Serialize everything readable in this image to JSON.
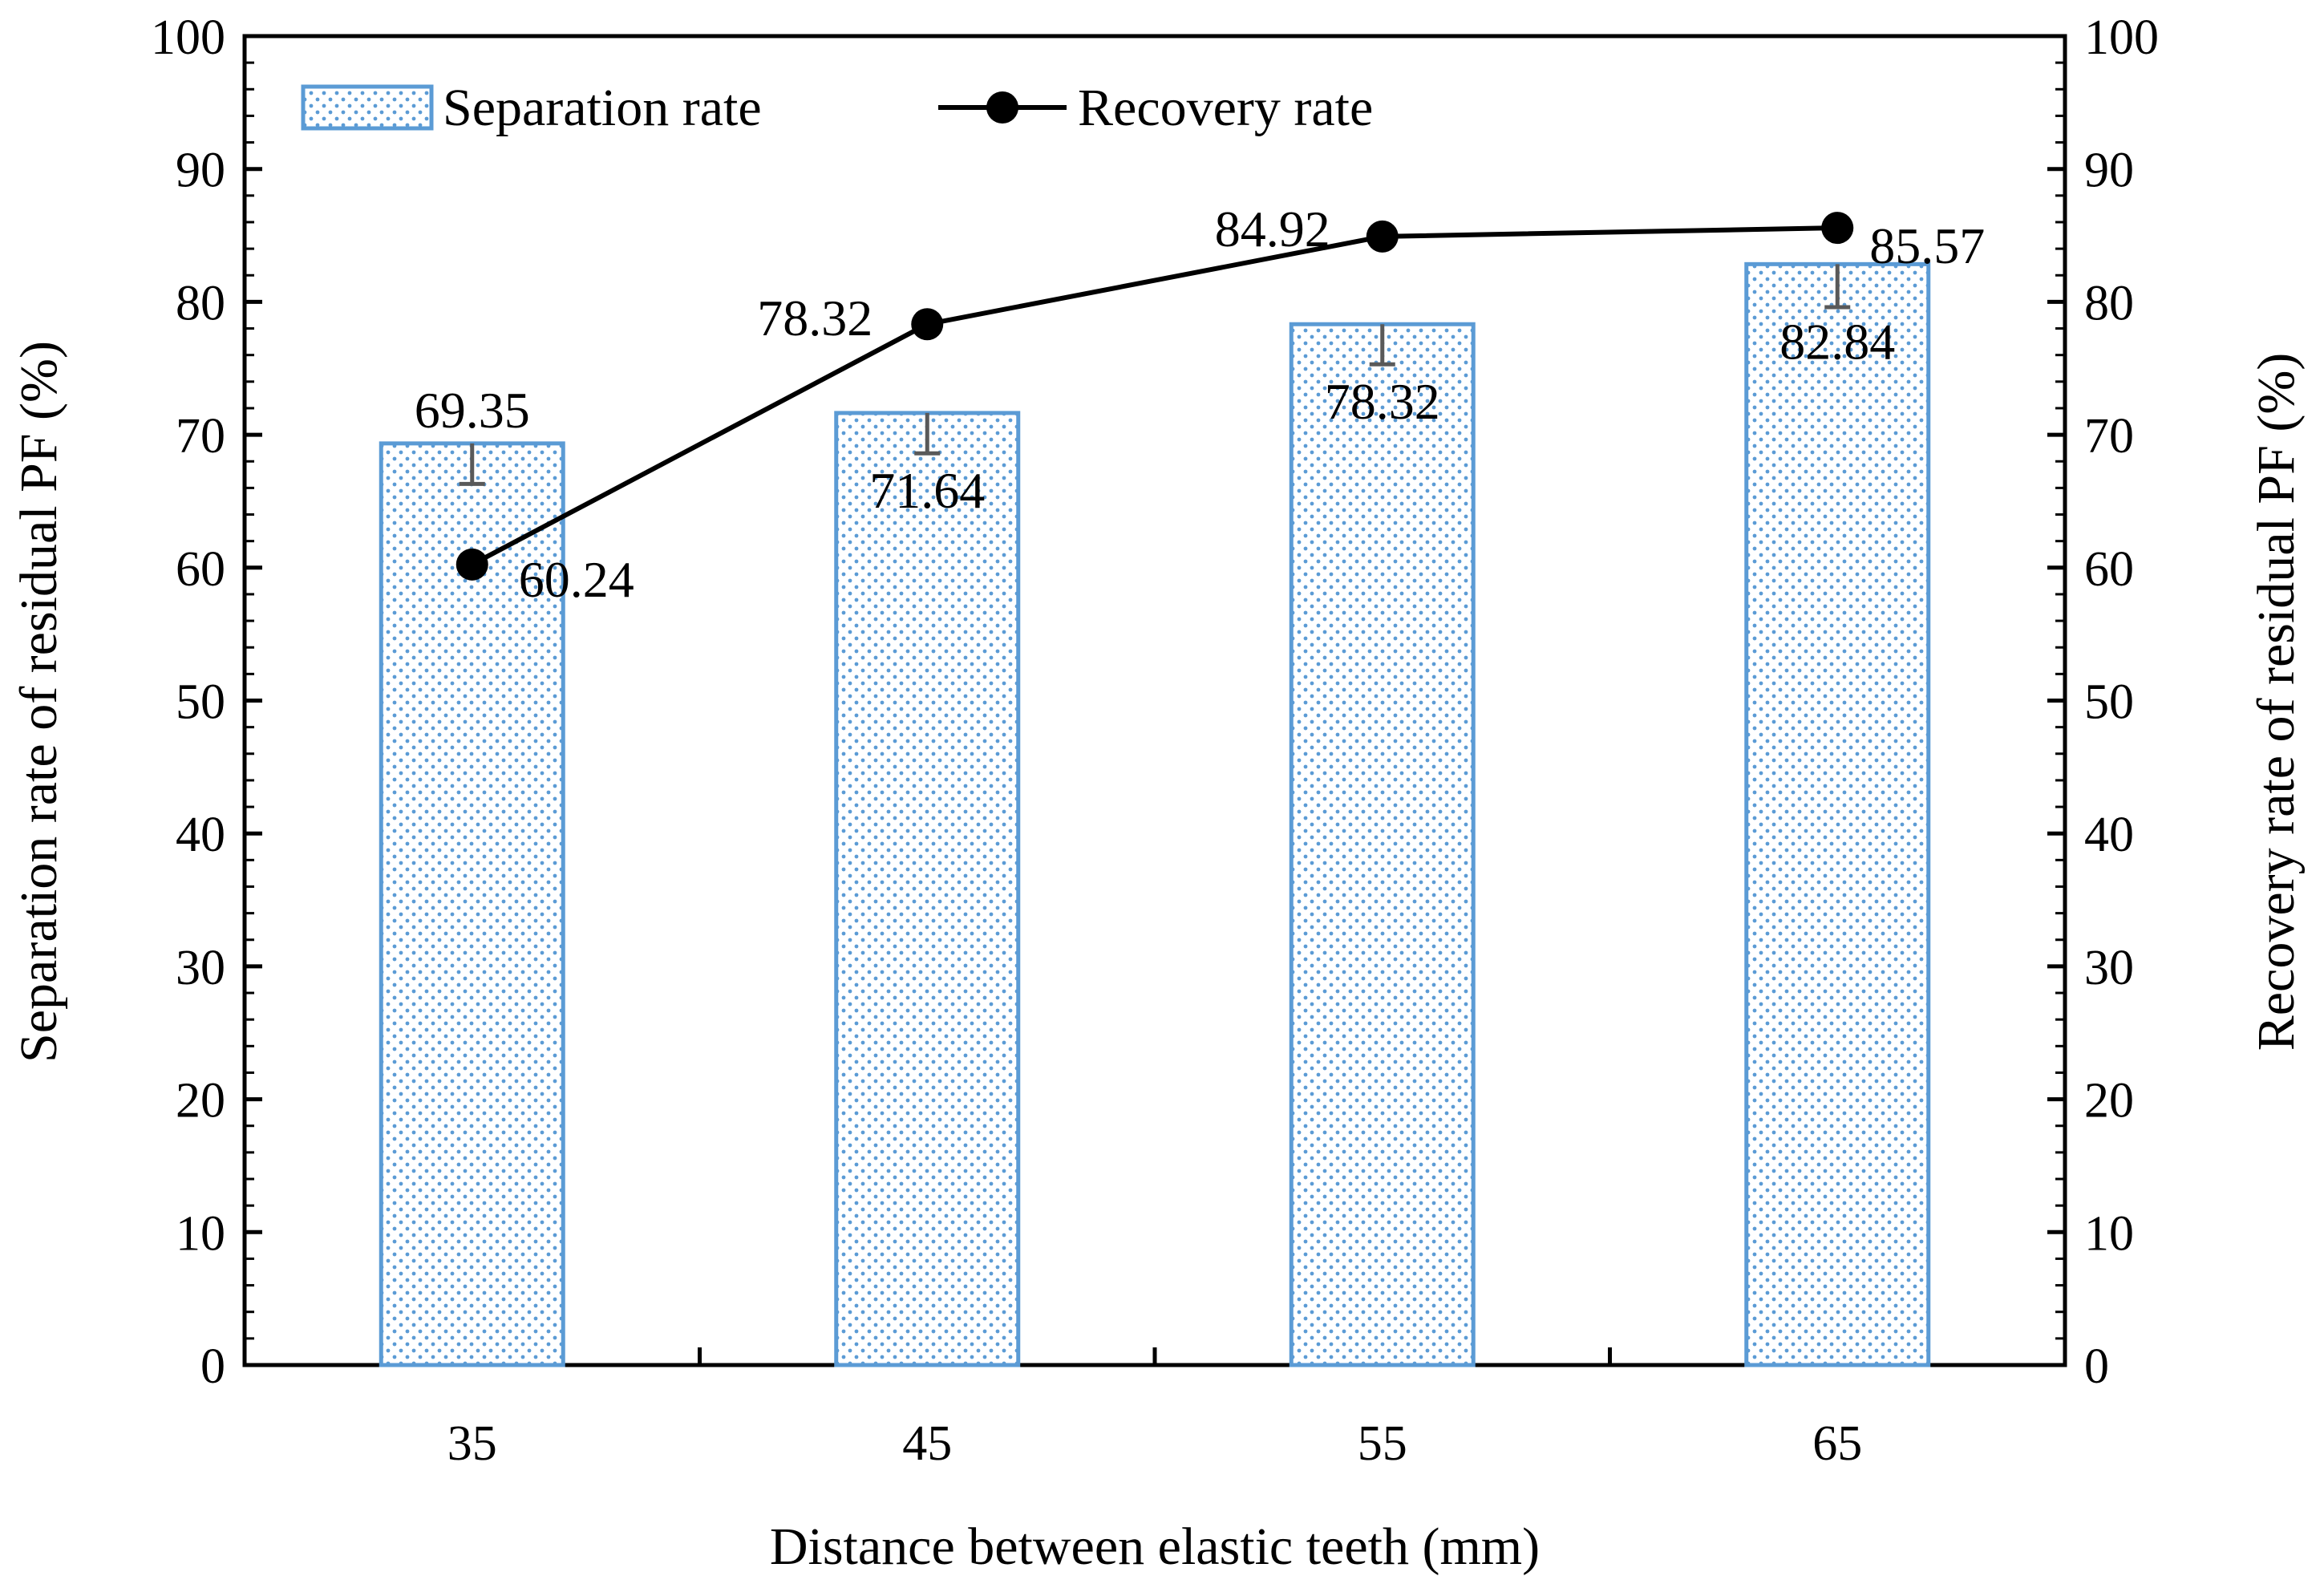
{
  "chart_data": {
    "type": "bar",
    "title": "",
    "categories": [
      "35",
      "45",
      "55",
      "65"
    ],
    "xlabel": "Distance between elastic teeth (mm)",
    "ylabel": "Separation rate of residual PF (%)",
    "y2label": "Recovery rate of residual PF (%)",
    "ylim": [
      0,
      100
    ],
    "y2lim": [
      0,
      100
    ],
    "yticks": [
      "0",
      "10",
      "20",
      "30",
      "40",
      "50",
      "60",
      "70",
      "80",
      "90",
      "100"
    ],
    "legend_position": "top-left",
    "grid": false,
    "series": [
      {
        "name": "Separation rate",
        "kind": "bar",
        "axis": "left",
        "values": [
          69.35,
          71.64,
          78.32,
          82.84
        ],
        "labels": [
          "69.35",
          "71.64",
          "78.32",
          "82.84"
        ],
        "error_low": [
          66.3,
          68.6,
          75.3,
          79.6
        ],
        "color": "#5b9bd5"
      },
      {
        "name": "Recovery rate",
        "kind": "line",
        "axis": "right",
        "values": [
          60.24,
          78.32,
          84.92,
          85.57
        ],
        "labels": [
          "60.24",
          "78.32",
          "84.92",
          "85.57"
        ],
        "color": "#000000"
      }
    ]
  }
}
